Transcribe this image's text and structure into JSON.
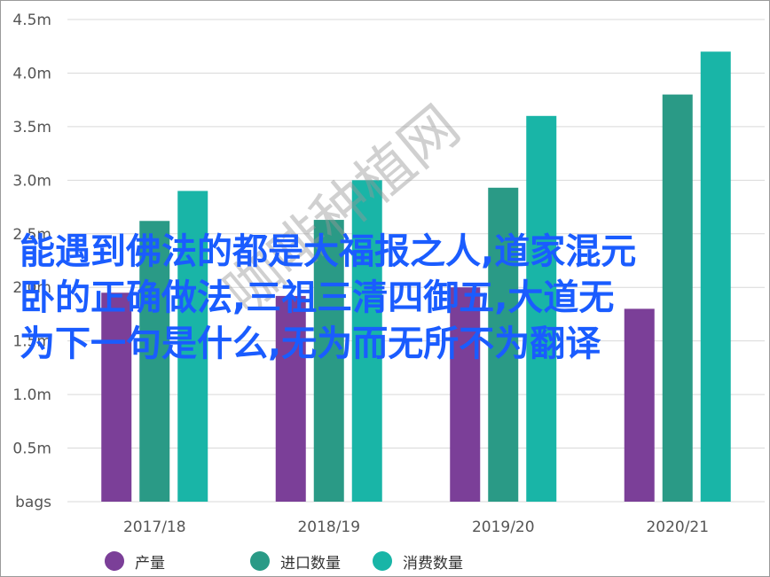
{
  "chart_data": {
    "type": "bar",
    "categories": [
      "2017/18",
      "2018/19",
      "2019/20",
      "2020/21"
    ],
    "series": [
      {
        "name": "产量",
        "color": "#7b3f98",
        "values": [
          1.95,
          1.92,
          2.0,
          1.8
        ]
      },
      {
        "name": "进口数量",
        "color": "#2a9a86",
        "values": [
          2.62,
          2.63,
          2.93,
          3.8
        ]
      },
      {
        "name": "消费数量",
        "color": "#19b5a7",
        "values": [
          2.9,
          3.0,
          3.6,
          4.2
        ]
      }
    ],
    "y_ticks": [
      "bags",
      "0.5m",
      "1.0m",
      "1.5m",
      "2.0m",
      "2.5m",
      "3.0m",
      "3.5m",
      "4.0m",
      "4.5m"
    ],
    "ylim": [
      0,
      4.5
    ],
    "grid": true,
    "legend_position": "bottom"
  },
  "overlay_text": {
    "line1": "能遇到佛法的都是大福报之人,道家混元",
    "line2": "卧的正确做法,三祖三清四御五,大道无",
    "line3": "为下一句是什么,无为而无所不为翻译"
  },
  "watermark": "咖啡种植网"
}
